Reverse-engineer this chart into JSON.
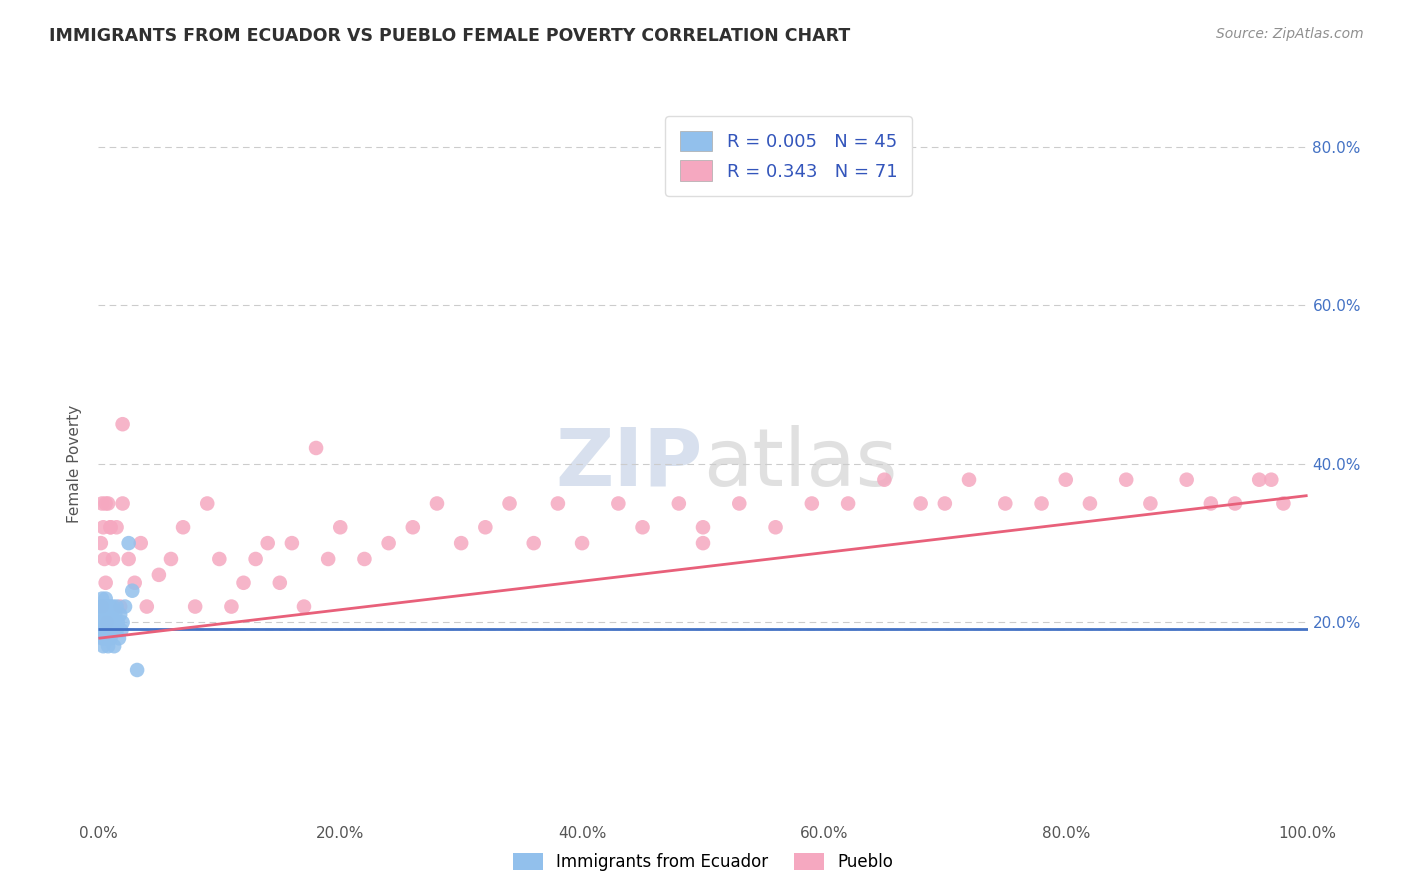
{
  "title": "IMMIGRANTS FROM ECUADOR VS PUEBLO FEMALE POVERTY CORRELATION CHART",
  "source": "Source: ZipAtlas.com",
  "ylabel": "Female Poverty",
  "legend1_label": "R = 0.005   N = 45",
  "legend2_label": "R = 0.343   N = 71",
  "legend_xlabel1": "Immigrants from Ecuador",
  "legend_xlabel2": "Pueblo",
  "blue_color": "#92C0EC",
  "pink_color": "#F5A8C0",
  "blue_line_color": "#4472C4",
  "pink_line_color": "#E8607A",
  "title_color": "#303030",
  "source_color": "#909090",
  "watermark": "ZIPatlas",
  "blue_scatter_x": [
    0.001,
    0.002,
    0.002,
    0.003,
    0.003,
    0.003,
    0.004,
    0.004,
    0.004,
    0.005,
    0.005,
    0.005,
    0.005,
    0.006,
    0.006,
    0.006,
    0.007,
    0.007,
    0.007,
    0.008,
    0.008,
    0.008,
    0.009,
    0.009,
    0.01,
    0.01,
    0.01,
    0.011,
    0.011,
    0.012,
    0.012,
    0.013,
    0.013,
    0.014,
    0.015,
    0.015,
    0.016,
    0.017,
    0.018,
    0.019,
    0.02,
    0.022,
    0.025,
    0.028,
    0.032
  ],
  "blue_scatter_y": [
    0.2,
    0.22,
    0.19,
    0.21,
    0.18,
    0.23,
    0.2,
    0.22,
    0.17,
    0.21,
    0.19,
    0.22,
    0.18,
    0.2,
    0.23,
    0.19,
    0.21,
    0.18,
    0.2,
    0.22,
    0.19,
    0.17,
    0.21,
    0.2,
    0.22,
    0.19,
    0.18,
    0.21,
    0.2,
    0.19,
    0.22,
    0.2,
    0.17,
    0.21,
    0.19,
    0.22,
    0.2,
    0.18,
    0.21,
    0.19,
    0.2,
    0.22,
    0.3,
    0.24,
    0.14
  ],
  "pink_scatter_x": [
    0.002,
    0.003,
    0.004,
    0.005,
    0.006,
    0.007,
    0.008,
    0.01,
    0.012,
    0.015,
    0.018,
    0.02,
    0.025,
    0.03,
    0.035,
    0.04,
    0.05,
    0.06,
    0.07,
    0.08,
    0.09,
    0.1,
    0.11,
    0.12,
    0.13,
    0.14,
    0.15,
    0.16,
    0.17,
    0.19,
    0.2,
    0.22,
    0.24,
    0.26,
    0.28,
    0.3,
    0.32,
    0.34,
    0.36,
    0.38,
    0.4,
    0.43,
    0.45,
    0.48,
    0.5,
    0.53,
    0.56,
    0.59,
    0.62,
    0.65,
    0.68,
    0.7,
    0.72,
    0.75,
    0.78,
    0.8,
    0.82,
    0.85,
    0.87,
    0.9,
    0.92,
    0.94,
    0.96,
    0.97,
    0.98,
    0.003,
    0.006,
    0.01,
    0.02,
    0.18,
    0.5
  ],
  "pink_scatter_y": [
    0.3,
    0.22,
    0.32,
    0.28,
    0.25,
    0.2,
    0.35,
    0.32,
    0.28,
    0.32,
    0.22,
    0.35,
    0.28,
    0.25,
    0.3,
    0.22,
    0.26,
    0.28,
    0.32,
    0.22,
    0.35,
    0.28,
    0.22,
    0.25,
    0.28,
    0.3,
    0.25,
    0.3,
    0.22,
    0.28,
    0.32,
    0.28,
    0.3,
    0.32,
    0.35,
    0.3,
    0.32,
    0.35,
    0.3,
    0.35,
    0.3,
    0.35,
    0.32,
    0.35,
    0.32,
    0.35,
    0.32,
    0.35,
    0.35,
    0.38,
    0.35,
    0.35,
    0.38,
    0.35,
    0.35,
    0.38,
    0.35,
    0.38,
    0.35,
    0.38,
    0.35,
    0.35,
    0.38,
    0.38,
    0.35,
    0.35,
    0.35,
    0.32,
    0.45,
    0.42,
    0.3
  ],
  "blue_line_x": [
    0.0,
    1.0
  ],
  "blue_line_y": [
    0.192,
    0.192
  ],
  "pink_line_x": [
    0.0,
    1.0
  ],
  "pink_line_y": [
    0.18,
    0.36
  ],
  "xlim": [
    0.0,
    1.0
  ],
  "ylim": [
    -0.05,
    0.85
  ],
  "background_color": "#FFFFFF",
  "grid_color": "#CCCCCC",
  "grid_alpha": 0.7
}
